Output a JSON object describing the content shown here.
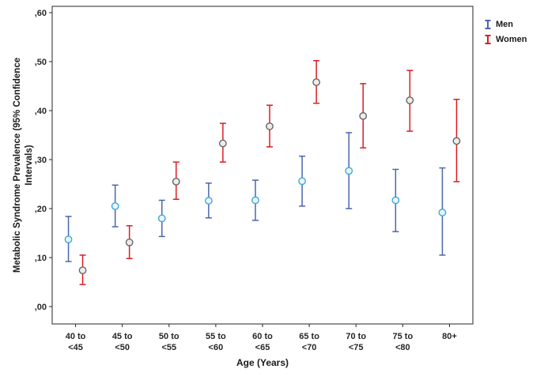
{
  "figure": {
    "background": "#ffffff",
    "frame_color": "#262626"
  },
  "chart_data": {
    "type": "errorbar",
    "title": "",
    "xlabel": "Age (Years)",
    "ylabel": "Metabolic Syndrome Prevalence (95% Confidence Intervals)",
    "ylabel_lines": [
      "Metabolic Syndrome Prevalence (95% Confidence",
      "Intervals)"
    ],
    "ylim": [
      0,
      0.62
    ],
    "yticks": [
      0,
      0.1,
      0.2,
      0.3,
      0.4,
      0.5,
      0.6
    ],
    "ytick_labels": [
      ",00",
      ",10",
      ",20",
      ",30",
      ",40",
      ",50",
      ",60"
    ],
    "categories": [
      "40 to <45",
      "45 to <50",
      "50 to <55",
      "55 to <60",
      "60 to <65",
      "65 to <70",
      "70 to <75",
      "75 to <80",
      "80+"
    ],
    "category_tick_lines": [
      [
        "40 to",
        "<45"
      ],
      [
        "45 to",
        "<50"
      ],
      [
        "50 to",
        "<55"
      ],
      [
        "55 to",
        "<60"
      ],
      [
        "60 to",
        "<65"
      ],
      [
        "65 to",
        "<70"
      ],
      [
        "70 to",
        "<75"
      ],
      [
        "75 to",
        "<80"
      ],
      [
        "80+"
      ]
    ],
    "grid": false,
    "legend_position": "right-top-outside",
    "series": [
      {
        "name": "Men",
        "bar_color": "#4a66ac",
        "marker_stroke": "#3ea8d8",
        "marker_fill": "#eaf5fb",
        "values": [
          0.137,
          0.205,
          0.18,
          0.216,
          0.217,
          0.256,
          0.277,
          0.217,
          0.192
        ],
        "ci_low": [
          0.092,
          0.163,
          0.143,
          0.181,
          0.176,
          0.205,
          0.2,
          0.153,
          0.105
        ],
        "ci_high": [
          0.184,
          0.248,
          0.217,
          0.252,
          0.258,
          0.307,
          0.355,
          0.28,
          0.283
        ]
      },
      {
        "name": "Women",
        "bar_color": "#dd1c24",
        "marker_stroke": "#666666",
        "marker_fill": "#ececec",
        "values": [
          0.074,
          0.131,
          0.255,
          0.333,
          0.368,
          0.458,
          0.389,
          0.421,
          0.338
        ],
        "ci_low": [
          0.045,
          0.098,
          0.219,
          0.295,
          0.326,
          0.415,
          0.324,
          0.358,
          0.255
        ],
        "ci_high": [
          0.105,
          0.165,
          0.295,
          0.374,
          0.411,
          0.502,
          0.455,
          0.482,
          0.423
        ]
      }
    ]
  }
}
